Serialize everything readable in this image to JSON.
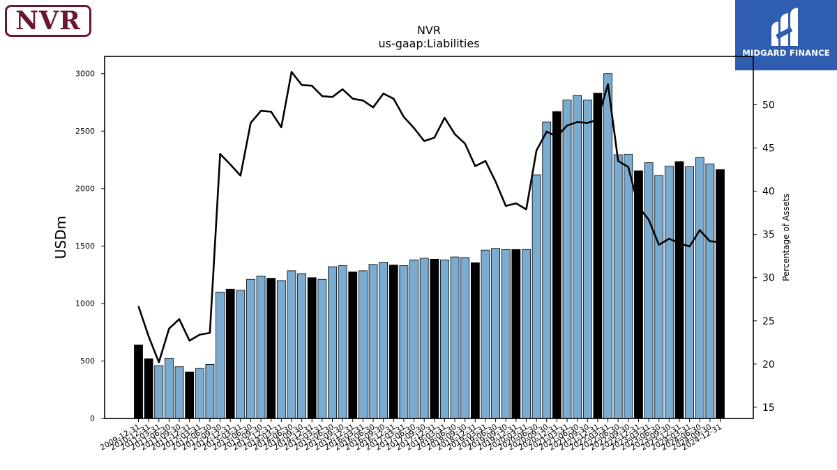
{
  "logos": {
    "left_text": "NVR",
    "right_text": "MIDGARD FINANCE"
  },
  "colors": {
    "bar_light": "#7aabd1",
    "bar_dark": "#000000",
    "line": "#000000",
    "logo_left": "#6b1530",
    "logo_right": "#2f5eb0"
  },
  "chart_data": {
    "type": "bar",
    "title": "NVR",
    "subtitle": "us-gaap:Liabilities",
    "ylabel": "USDm",
    "y2label": "Percentage of Assets",
    "ylim": [
      0,
      3150
    ],
    "y2lim": [
      13.7,
      55.6
    ],
    "yticks": [
      0,
      500,
      1000,
      1500,
      2000,
      2500,
      3000
    ],
    "y2ticks": [
      15,
      20,
      25,
      30,
      35,
      40,
      45,
      50
    ],
    "grid": false,
    "categories": [
      "2009-12-31",
      "2010-12-31",
      "2011-03-31",
      "2011-06-30",
      "2011-09-30",
      "2011-12-31",
      "2012-03-31",
      "2012-06-30",
      "2012-09-30",
      "2012-12-31",
      "2013-03-31",
      "2013-06-30",
      "2013-09-30",
      "2013-12-31",
      "2014-03-31",
      "2014-06-30",
      "2014-09-30",
      "2014-12-31",
      "2015-03-31",
      "2015-06-30",
      "2015-09-30",
      "2015-12-31",
      "2016-03-31",
      "2016-06-30",
      "2016-09-30",
      "2016-12-31",
      "2017-03-31",
      "2017-06-30",
      "2017-09-30",
      "2017-12-31",
      "2018-03-31",
      "2018-06-30",
      "2018-09-30",
      "2018-12-31",
      "2019-03-31",
      "2019-06-30",
      "2019-09-30",
      "2019-12-31",
      "2020-03-31",
      "2020-06-30",
      "2020-09-30",
      "2020-12-31",
      "2021-03-31",
      "2021-06-30",
      "2021-09-30",
      "2021-12-31",
      "2022-03-31",
      "2022-06-30",
      "2022-09-30",
      "2022-12-31",
      "2023-03-31",
      "2023-06-30",
      "2023-09-30",
      "2023-12-31",
      "2024-03-31",
      "2024-06-30",
      "2024-09-30",
      "2024-12-31"
    ],
    "series": [
      {
        "kind": "bar",
        "values": [
          640,
          520,
          460,
          525,
          450,
          405,
          435,
          470,
          1100,
          1125,
          1115,
          1210,
          1240,
          1220,
          1200,
          1285,
          1260,
          1225,
          1210,
          1320,
          1330,
          1275,
          1285,
          1340,
          1360,
          1335,
          1330,
          1380,
          1395,
          1385,
          1380,
          1405,
          1400,
          1355,
          1465,
          1480,
          1470,
          1470,
          1470,
          2120,
          2580,
          2670,
          2770,
          2810,
          2770,
          2830,
          3000,
          2295,
          2300,
          2155,
          2225,
          2115,
          2195,
          2235,
          2190,
          2270,
          2215,
          2165
        ],
        "annual": [
          true,
          true,
          false,
          false,
          false,
          true,
          false,
          false,
          false,
          true,
          false,
          false,
          false,
          true,
          false,
          false,
          false,
          true,
          false,
          false,
          false,
          true,
          false,
          false,
          false,
          true,
          false,
          false,
          false,
          true,
          false,
          false,
          false,
          true,
          false,
          false,
          false,
          true,
          false,
          false,
          false,
          true,
          false,
          false,
          false,
          true,
          false,
          false,
          false,
          true,
          false,
          false,
          false,
          true,
          false,
          false,
          false,
          true
        ]
      },
      {
        "kind": "line",
        "axis": "right",
        "values": [
          26.7,
          23.2,
          20.2,
          24.1,
          25.2,
          22.7,
          23.4,
          23.6,
          44.3,
          43.1,
          41.8,
          47.9,
          49.3,
          49.2,
          47.4,
          53.8,
          52.3,
          52.2,
          51.0,
          50.9,
          51.8,
          50.7,
          50.5,
          49.7,
          51.3,
          50.7,
          48.6,
          47.3,
          45.8,
          46.2,
          48.5,
          46.6,
          45.5,
          42.9,
          43.5,
          41.1,
          38.3,
          38.6,
          37.9,
          44.7,
          46.9,
          46.3,
          47.6,
          48.0,
          47.9,
          48.3,
          52.4,
          43.5,
          42.8,
          38.2,
          36.7,
          33.8,
          34.5,
          34.0,
          33.6,
          35.5,
          34.2,
          34.1
        ]
      }
    ]
  }
}
